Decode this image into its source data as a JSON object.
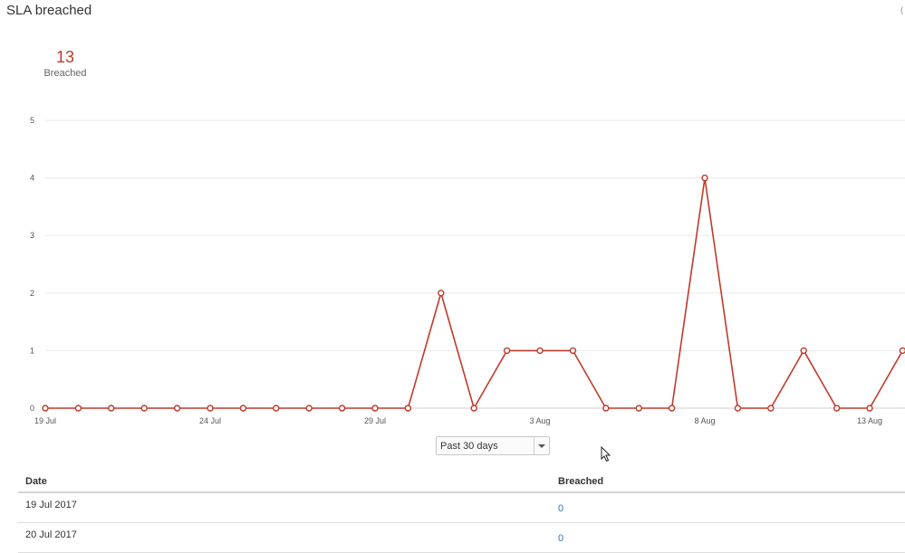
{
  "page": {
    "title": "SLA breached",
    "edge_glyph": "("
  },
  "summary": {
    "value": "13",
    "label": "Breached"
  },
  "chart_data": {
    "type": "line",
    "x": [
      "19 Jul",
      "20 Jul",
      "21 Jul",
      "22 Jul",
      "23 Jul",
      "24 Jul",
      "25 Jul",
      "26 Jul",
      "27 Jul",
      "28 Jul",
      "29 Jul",
      "30 Jul",
      "31 Jul",
      "1 Aug",
      "2 Aug",
      "3 Aug",
      "4 Aug",
      "5 Aug",
      "6 Aug",
      "7 Aug",
      "8 Aug",
      "9 Aug",
      "10 Aug",
      "11 Aug",
      "12 Aug",
      "13 Aug",
      "14 Aug"
    ],
    "series": [
      {
        "values": [
          0,
          0,
          0,
          0,
          0,
          0,
          0,
          0,
          0,
          0,
          0,
          0,
          2,
          0,
          1,
          1,
          1,
          0,
          0,
          0,
          4,
          0,
          0,
          1,
          0,
          0,
          1
        ]
      }
    ],
    "x_ticks": [
      "19 Jul",
      "24 Jul",
      "29 Jul",
      "3 Aug",
      "8 Aug",
      "13 Aug"
    ],
    "y_ticks": [
      "0",
      "1",
      "2",
      "3",
      "4",
      "5"
    ],
    "ylim": [
      0,
      5
    ],
    "grid": true,
    "line_color": "#c0392b"
  },
  "filter": {
    "selected": "Past 30 days"
  },
  "table": {
    "headers": {
      "date": "Date",
      "breached": "Breached"
    },
    "rows": [
      {
        "date": "19 Jul 2017",
        "breached": "0"
      },
      {
        "date": "20 Jul 2017",
        "breached": "0"
      }
    ]
  }
}
